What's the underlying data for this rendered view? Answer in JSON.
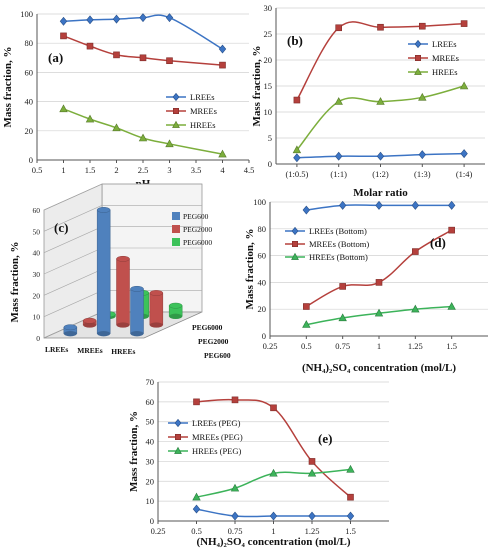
{
  "chart_data": [
    {
      "panel": "(a)",
      "type": "line",
      "xlabel": "pH",
      "ylabel": "Mass fraction, %",
      "xlim": [
        0.5,
        4.5
      ],
      "ylim": [
        0,
        100
      ],
      "x_ticks": [
        "0.5",
        "1",
        "1.5",
        "2",
        "2.5",
        "3",
        "3.5",
        "4",
        "4.5"
      ],
      "y_ticks": [
        "0",
        "20",
        "40",
        "60",
        "80",
        "100"
      ],
      "grid": "horizontal",
      "legend_position": "right",
      "x": [
        1,
        1.5,
        2,
        2.5,
        3,
        4
      ],
      "series": [
        {
          "name": "LREEs",
          "color": "#3c74c4",
          "marker": "diamond",
          "values": [
            95,
            96,
            96.5,
            97.5,
            97.5,
            76
          ]
        },
        {
          "name": "MREEs",
          "color": "#b5403c",
          "marker": "square",
          "values": [
            85,
            78,
            72,
            70,
            68,
            65
          ]
        },
        {
          "name": "HREEs",
          "color": "#7cae3c",
          "marker": "triangle",
          "values": [
            35,
            28,
            22,
            15,
            11,
            4
          ]
        }
      ]
    },
    {
      "panel": "(b)",
      "type": "line",
      "xlabel": "Molar ratio",
      "ylabel": "Mass fraction, %",
      "categories": [
        "(1:0.5)",
        "(1:1)",
        "(1:2)",
        "(1:3)",
        "(1:4)"
      ],
      "ylim": [
        0,
        30
      ],
      "y_ticks": [
        "0",
        "5",
        "10",
        "15",
        "20",
        "25",
        "30"
      ],
      "grid": "horizontal",
      "legend_position": "right",
      "series": [
        {
          "name": "LREEs",
          "color": "#3c74c4",
          "marker": "diamond",
          "values": [
            1.2,
            1.5,
            1.5,
            1.8,
            2
          ]
        },
        {
          "name": "MREEs",
          "color": "#b5403c",
          "marker": "square",
          "values": [
            12.3,
            26.2,
            26.3,
            26.5,
            27
          ]
        },
        {
          "name": "HREEs",
          "color": "#7cae3c",
          "marker": "triangle",
          "values": [
            2.7,
            12,
            12,
            12.8,
            15
          ]
        }
      ]
    },
    {
      "panel": "(c)",
      "type": "bar",
      "subtype": "3d-bar",
      "ylabel": "Mass fraction, %",
      "categories": [
        "LREEs",
        "MREEs",
        "HREEs"
      ],
      "depth_labels": [
        "PEG6000",
        "PEG2000",
        "PEG600"
      ],
      "ylim": [
        0,
        60
      ],
      "y_ticks": [
        "0",
        "10",
        "20",
        "30",
        "40",
        "50",
        "60"
      ],
      "legend_position": "top-right",
      "series": [
        {
          "name": "PEG600",
          "color": "#4f81bd",
          "values": [
            3,
            58,
            21
          ]
        },
        {
          "name": "PEG2000",
          "color": "#c0504d",
          "values": [
            2,
            31,
            15
          ]
        },
        {
          "name": "PEG6000",
          "color": "#3cc25a",
          "values": [
            1,
            11,
            5
          ]
        }
      ]
    },
    {
      "panel": "(d)",
      "type": "line",
      "xlabel": "(NH₄)₂SO₄ concentration (mol/L)",
      "ylabel": "Mass fraction, %",
      "xlim": [
        0.25,
        1.75
      ],
      "ylim": [
        0,
        100
      ],
      "x_ticks": [
        "0.25",
        "0.5",
        "0.75",
        "1",
        "1.25",
        "1.5"
      ],
      "y_ticks": [
        "0",
        "20",
        "40",
        "60",
        "80",
        "100"
      ],
      "grid": "horizontal",
      "legend_position": "top-left",
      "x": [
        0.5,
        0.75,
        1,
        1.25,
        1.5
      ],
      "series": [
        {
          "name": "LREEs (Bottom)",
          "color": "#3c74c4",
          "marker": "diamond",
          "values": [
            94,
            97.5,
            97.5,
            97.5,
            97.5
          ]
        },
        {
          "name": "MREEs (Bottom)",
          "color": "#b5403c",
          "marker": "square",
          "values": [
            22,
            37,
            40,
            63,
            79
          ]
        },
        {
          "name": "HREEs (Bottom)",
          "color": "#3cb35a",
          "marker": "triangle",
          "values": [
            8.5,
            13.5,
            17,
            20,
            22
          ]
        }
      ]
    },
    {
      "panel": "(e)",
      "type": "line",
      "xlabel": "(NH₄)₂SO₄ concentration (mol/L)",
      "ylabel": "Mass fraction, %",
      "xlim": [
        0.25,
        1.75
      ],
      "ylim": [
        0,
        70
      ],
      "x_ticks": [
        "0.25",
        "0.5",
        "0.75",
        "1",
        "1.25",
        "1.5"
      ],
      "y_ticks": [
        "0",
        "10",
        "20",
        "30",
        "40",
        "50",
        "60",
        "70"
      ],
      "grid": "horizontal",
      "legend_position": "left",
      "x": [
        0.5,
        0.75,
        1,
        1.25,
        1.5
      ],
      "series": [
        {
          "name": "LREEs (PEG)",
          "color": "#3c74c4",
          "marker": "diamond",
          "values": [
            6,
            2.5,
            2.5,
            2.5,
            2.5
          ]
        },
        {
          "name": "MREEs (PEG)",
          "color": "#b5403c",
          "marker": "square",
          "values": [
            60,
            61,
            57,
            30,
            12
          ]
        },
        {
          "name": "HREEs (PEG)",
          "color": "#3cb35a",
          "marker": "triangle",
          "values": [
            12,
            16.5,
            24,
            24,
            26
          ]
        }
      ]
    }
  ]
}
